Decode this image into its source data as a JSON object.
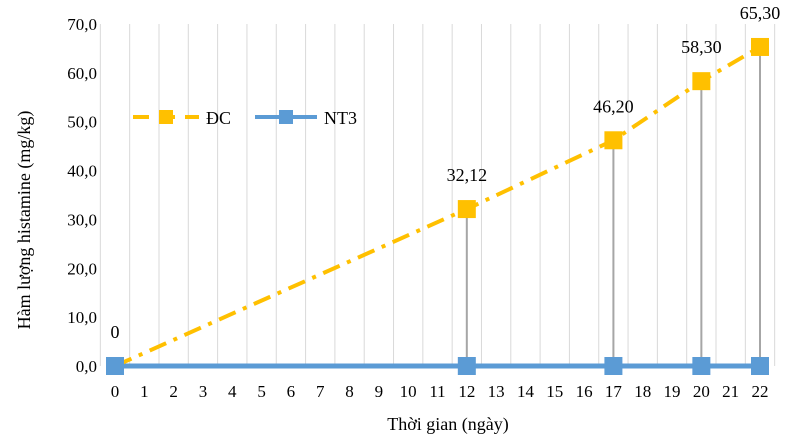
{
  "chart_data": {
    "type": "line",
    "xlabel": "Thời gian (ngày)",
    "ylabel": "Hàm lượng histamine (mg/kg)",
    "x_ticks": [
      "0",
      "1",
      "2",
      "3",
      "4",
      "5",
      "6",
      "7",
      "8",
      "9",
      "10",
      "11",
      "12",
      "13",
      "14",
      "15",
      "16",
      "17",
      "18",
      "19",
      "20",
      "21",
      "22"
    ],
    "y_ticks": [
      "0,0",
      "10,0",
      "20,0",
      "30,0",
      "40,0",
      "50,0",
      "60,0",
      "70,0"
    ],
    "ylim": [
      0,
      70
    ],
    "xlim": [
      0,
      22
    ],
    "grid": "vertical",
    "legend_position": "left",
    "drop_lines": true,
    "series": [
      {
        "name": "ĐC",
        "color": "#FFC000",
        "line_style": "dash-dot",
        "marker": "square",
        "x": [
          0,
          12,
          17,
          20,
          22
        ],
        "y": [
          0,
          32.12,
          46.2,
          58.3,
          65.3
        ],
        "labels": [
          "0",
          "32,12",
          "46,20",
          "58,30",
          "65,30"
        ]
      },
      {
        "name": "NT3",
        "color": "#5B9BD5",
        "line_style": "solid",
        "marker": "square",
        "x": [
          0,
          12,
          17,
          20,
          22
        ],
        "y": [
          0,
          0,
          0,
          0,
          0
        ]
      }
    ]
  }
}
